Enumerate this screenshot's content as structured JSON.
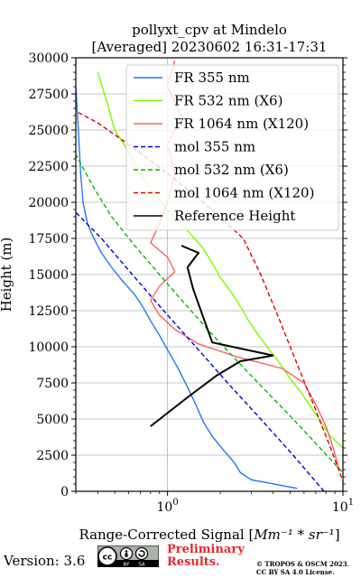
{
  "chart_data": {
    "type": "line",
    "title_line1": "pollyxt_cpv at Mindelo",
    "title_line2": "[Averaged] 20230602 16:31-17:31",
    "xlabel": "Range-Corrected Signal [",
    "xlabel_unit": "Mm⁻¹ * sr⁻¹",
    "xlabel_close": "]",
    "ylabel": "Height (m)",
    "xscale": "log",
    "xlim": [
      0.3,
      10
    ],
    "ylim": [
      0,
      30000
    ],
    "grid": true,
    "legend_position": "top-right",
    "y_ticks": [
      "0",
      "2500",
      "5000",
      "7500",
      "10000",
      "12500",
      "15000",
      "17500",
      "20000",
      "22500",
      "25000",
      "27500",
      "30000"
    ],
    "x_ticks": [
      {
        "base": "10",
        "exp": "0"
      },
      {
        "base": "10",
        "exp": "1"
      }
    ],
    "series": [
      {
        "name": "FR 355 nm",
        "color": "#1f77ff",
        "style": "solid",
        "points": [
          [
            5.5,
            200
          ],
          [
            3.0,
            800
          ],
          [
            2.6,
            1300
          ],
          [
            2.4,
            2000
          ],
          [
            2.1,
            2800
          ],
          [
            1.8,
            3800
          ],
          [
            1.6,
            4800
          ],
          [
            1.45,
            6000
          ],
          [
            1.3,
            7200
          ],
          [
            1.15,
            8500
          ],
          [
            1.0,
            9800
          ],
          [
            0.9,
            10800
          ],
          [
            0.8,
            11800
          ],
          [
            0.72,
            12800
          ],
          [
            0.65,
            13600
          ],
          [
            0.55,
            14600
          ],
          [
            0.48,
            15500
          ],
          [
            0.42,
            16500
          ],
          [
            0.38,
            17500
          ],
          [
            0.35,
            18500
          ],
          [
            0.33,
            20000
          ],
          [
            0.32,
            22000
          ],
          [
            0.31,
            25000
          ],
          [
            0.3,
            28000
          ]
        ]
      },
      {
        "name": "FR 532 nm (X6)",
        "color": "#7cfc00",
        "style": "solid",
        "points": [
          [
            10,
            3000
          ],
          [
            8.5,
            3800
          ],
          [
            7.5,
            4800
          ],
          [
            6.6,
            5800
          ],
          [
            5.8,
            6800
          ],
          [
            5.0,
            7800
          ],
          [
            4.4,
            8800
          ],
          [
            3.8,
            9800
          ],
          [
            3.3,
            10800
          ],
          [
            2.9,
            11800
          ],
          [
            2.6,
            12800
          ],
          [
            2.3,
            13800
          ],
          [
            2.0,
            14800
          ],
          [
            1.8,
            15800
          ],
          [
            1.6,
            16800
          ],
          [
            1.4,
            17600
          ],
          [
            1.2,
            18500
          ],
          [
            1.0,
            19500
          ],
          [
            0.85,
            20500
          ],
          [
            0.7,
            22000
          ],
          [
            0.6,
            23500
          ],
          [
            0.5,
            25000
          ],
          [
            0.45,
            27000
          ],
          [
            0.4,
            29000
          ]
        ]
      },
      {
        "name": "FR 1064 nm (X120)",
        "color": "#ff6060",
        "style": "solid",
        "points": [
          [
            9.5,
            1500
          ],
          [
            8.8,
            3000
          ],
          [
            8.0,
            4500
          ],
          [
            7.0,
            6000
          ],
          [
            6.0,
            7500
          ],
          [
            4.5,
            8500
          ],
          [
            2.5,
            9300
          ],
          [
            1.5,
            10200
          ],
          [
            1.1,
            11200
          ],
          [
            0.9,
            12200
          ],
          [
            0.8,
            13200
          ],
          [
            0.9,
            14200
          ],
          [
            1.1,
            15200
          ],
          [
            1.0,
            16200
          ],
          [
            0.8,
            17200
          ],
          [
            0.9,
            18500
          ],
          [
            1.0,
            20000
          ],
          [
            1.1,
            22000
          ],
          [
            1.0,
            24000
          ],
          [
            1.2,
            26000
          ],
          [
            1.0,
            28000
          ],
          [
            1.1,
            29800
          ]
        ]
      },
      {
        "name": "mol 355 nm",
        "color": "#0000dd",
        "style": "dashed",
        "points": [
          [
            7.8,
            0
          ],
          [
            5.2,
            2500
          ],
          [
            3.4,
            5000
          ],
          [
            2.2,
            7500
          ],
          [
            1.45,
            10000
          ],
          [
            0.95,
            12500
          ],
          [
            0.63,
            15000
          ],
          [
            0.42,
            17500
          ],
          [
            0.3,
            19300
          ]
        ]
      },
      {
        "name": "mol 532 nm (X6)",
        "color": "#00bb00",
        "style": "dashed",
        "points": [
          [
            10.5,
            1000
          ],
          [
            7.4,
            3000
          ],
          [
            5.2,
            5000
          ],
          [
            3.6,
            7000
          ],
          [
            2.5,
            9000
          ],
          [
            1.75,
            11000
          ],
          [
            1.25,
            13000
          ],
          [
            0.9,
            15000
          ],
          [
            0.65,
            17000
          ],
          [
            0.48,
            19000
          ],
          [
            0.38,
            21000
          ],
          [
            0.3,
            23300
          ]
        ]
      },
      {
        "name": "mol 1064 nm (X120)",
        "color": "#dd0000",
        "style": "dashed",
        "points": [
          [
            10.5,
            0
          ],
          [
            8.5,
            3000
          ],
          [
            6.8,
            6000
          ],
          [
            5.4,
            9000
          ],
          [
            4.3,
            12000
          ],
          [
            3.4,
            15000
          ],
          [
            2.7,
            17500
          ],
          [
            1.6,
            20000
          ],
          [
            1.0,
            22000
          ],
          [
            0.6,
            24000
          ],
          [
            0.4,
            25500
          ],
          [
            0.3,
            26300
          ]
        ]
      },
      {
        "name": "Reference Height",
        "color": "#000000",
        "style": "solid",
        "points": [
          [
            0.8,
            4500
          ],
          [
            1.3,
            6500
          ],
          [
            1.9,
            8000
          ],
          [
            2.6,
            9000
          ],
          [
            4.0,
            9400
          ],
          [
            1.8,
            10300
          ],
          [
            1.4,
            14000
          ],
          [
            1.3,
            15500
          ],
          [
            1.5,
            16500
          ],
          [
            1.2,
            17000
          ]
        ]
      }
    ]
  },
  "footer": {
    "version_text": "Version: 3.6",
    "preliminary_line1": "Preliminary",
    "preliminary_line2": "Results.",
    "copyright_line1": "© TROPOS & OSCM 2023.",
    "copyright_line2": "CC BY SA 4.0 License.",
    "cc_badge": {
      "left": "cc",
      "by": "BY",
      "sa": "SA"
    }
  },
  "colors": {
    "fr355": "#1f77ff",
    "fr532": "#7cfc00",
    "fr1064": "#ff6060",
    "mol355": "#0000dd",
    "mol532": "#00bb00",
    "mol1064": "#dd0000",
    "ref": "#000000",
    "preliminary": "#e8262a"
  }
}
